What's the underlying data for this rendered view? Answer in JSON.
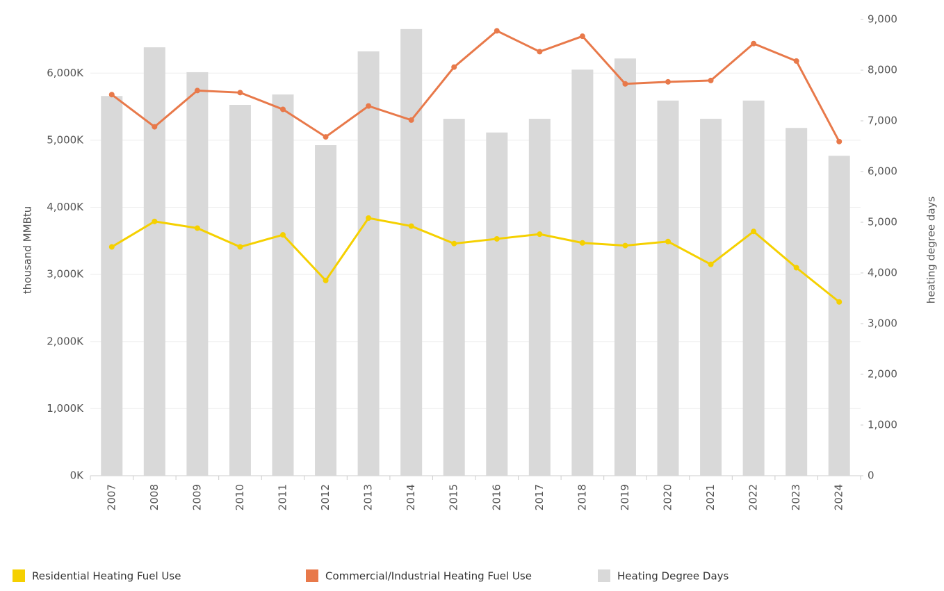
{
  "chart_data": {
    "type": "bar_line_combo",
    "y_axis_label": "thousand MMBtu",
    "y2_axis_label": "heating degree days",
    "categories": [
      "2007",
      "2008",
      "2009",
      "2010",
      "2011",
      "2012",
      "2013",
      "2014",
      "2015",
      "2016",
      "2017",
      "2018",
      "2019",
      "2020",
      "2021",
      "2022",
      "2023",
      "2024"
    ],
    "series": [
      {
        "name": "Residential Heating Fuel Use",
        "type": "line",
        "color": "#f5d000",
        "axis": "y",
        "values": [
          3410,
          3790,
          3690,
          3410,
          3590,
          2910,
          3840,
          3720,
          3460,
          3530,
          3600,
          3470,
          3430,
          3490,
          3150,
          3640,
          3100,
          2590
        ]
      },
      {
        "name": "Commercial/Industrial Heating Fuel Use",
        "type": "line",
        "color": "#e8794a",
        "axis": "y",
        "values": [
          5680,
          5200,
          5740,
          5710,
          5460,
          5050,
          5510,
          5300,
          6090,
          6630,
          6320,
          6550,
          5840,
          5870,
          5890,
          6440,
          6180,
          4980
        ]
      },
      {
        "name": "Heating Degree Days",
        "type": "bar",
        "color": "#d9d9d9",
        "axis": "y2",
        "values": [
          7490,
          8450,
          7960,
          7315,
          7520,
          6520,
          8370,
          8810,
          7040,
          6770,
          7040,
          8010,
          8230,
          7400,
          7040,
          7400,
          6860,
          6310
        ]
      }
    ],
    "ylim": [
      0,
      6800
    ],
    "yticks": [
      {
        "value": 0,
        "label": "0K"
      },
      {
        "value": 1000,
        "label": "1,000K"
      },
      {
        "value": 2000,
        "label": "2,000K"
      },
      {
        "value": 3000,
        "label": "3,000K"
      },
      {
        "value": 4000,
        "label": "4,000K"
      },
      {
        "value": 5000,
        "label": "5,000K"
      },
      {
        "value": 6000,
        "label": "6,000K"
      }
    ],
    "y2lim": [
      0,
      9000
    ],
    "y2ticks": [
      0,
      {
        "value": 1000,
        "label": "1,000"
      },
      {
        "value": 2000,
        "label": "2,000"
      },
      {
        "value": 3000,
        "label": "3,000"
      },
      {
        "value": 4000,
        "label": "4,000"
      },
      {
        "value": 5000,
        "label": "5,000"
      },
      {
        "value": 6000,
        "label": "6,000"
      },
      {
        "value": 7000,
        "label": "7,000"
      },
      {
        "value": 8000,
        "label": "8,000"
      },
      {
        "value": 9000,
        "label": "9,000"
      }
    ],
    "grid": true,
    "legend": "bottom"
  }
}
